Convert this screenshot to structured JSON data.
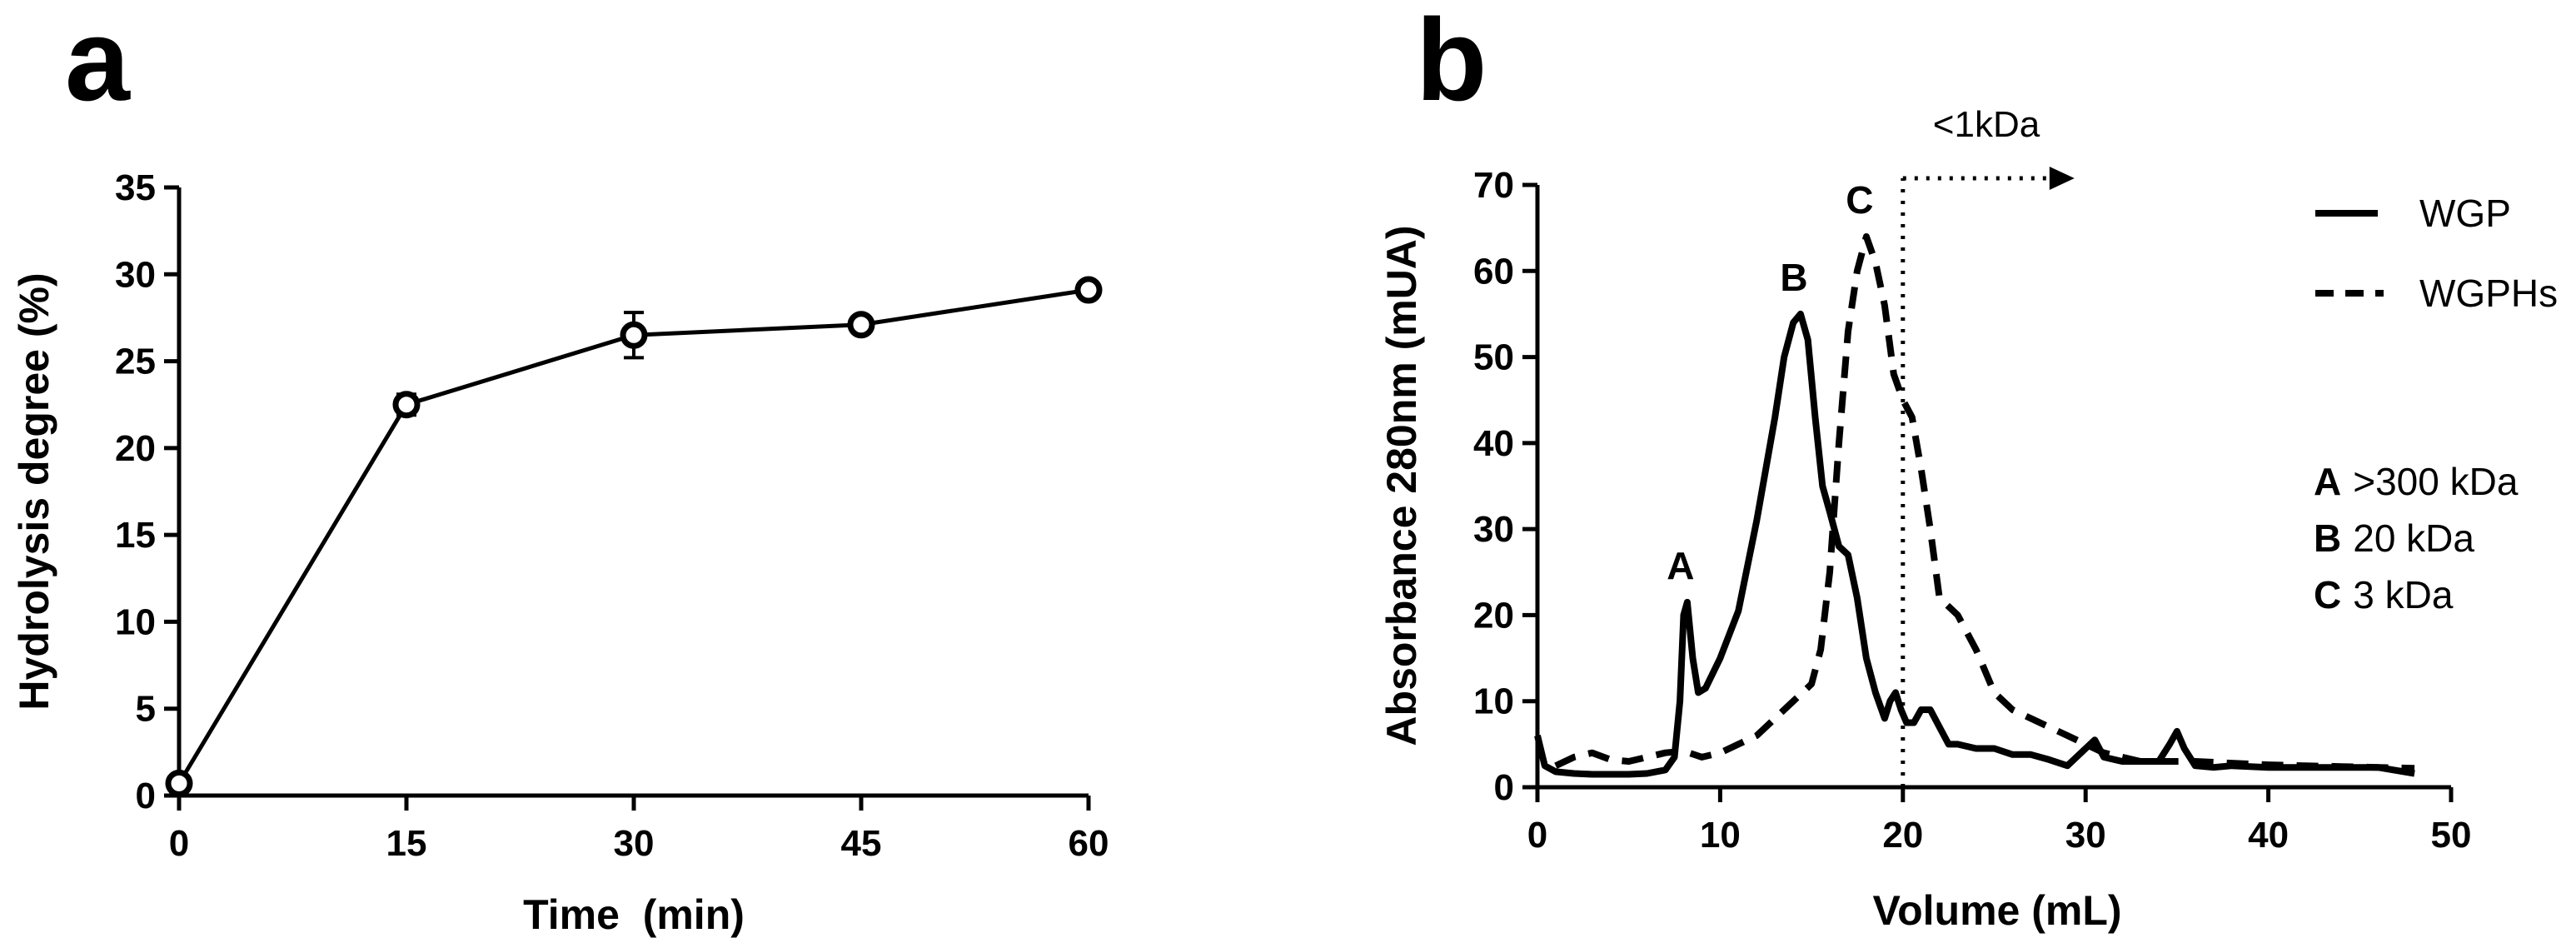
{
  "chart_data": [
    {
      "panel": "a",
      "type": "line",
      "xlabel": "Time  (min)",
      "ylabel": "Hydrolysis degree (%)",
      "xlim": [
        0,
        60
      ],
      "ylim": [
        0,
        35
      ],
      "xticks": [
        0,
        15,
        30,
        45,
        60
      ],
      "yticks": [
        0,
        5,
        10,
        15,
        20,
        25,
        30,
        35
      ],
      "grid": false,
      "marker": "open-circle",
      "series": [
        {
          "x": [
            0,
            15,
            30,
            45,
            60
          ],
          "y": [
            0.7,
            22.5,
            26.5,
            27.1,
            29.1
          ],
          "error": [
            0.3,
            0.6,
            1.3,
            0.4,
            0.4
          ]
        }
      ]
    },
    {
      "panel": "b",
      "type": "line",
      "xlabel": "Volume (mL)",
      "ylabel": "Absorbance 280nm (mUA)",
      "xlim": [
        0,
        50
      ],
      "ylim": [
        0,
        70
      ],
      "xticks": [
        0,
        10,
        20,
        30,
        40,
        50
      ],
      "yticks": [
        0,
        10,
        20,
        30,
        40,
        50,
        60,
        70
      ],
      "grid": false,
      "legend_position": "top-right",
      "series": [
        {
          "name": "WGP",
          "style": "solid",
          "x": [
            0,
            0.4,
            1,
            2,
            3,
            4,
            5,
            6,
            7,
            7.5,
            7.8,
            8.0,
            8.2,
            8.5,
            8.8,
            9.2,
            10,
            11,
            12,
            13,
            13.5,
            14,
            14.4,
            14.8,
            15.2,
            15.6,
            16,
            16.5,
            17,
            17.5,
            18,
            18.5,
            19,
            19.3,
            19.6,
            19.9,
            20.2,
            20.6,
            21,
            21.5,
            22,
            22.5,
            23,
            24,
            25,
            26,
            27,
            28,
            29,
            30,
            30.5,
            31,
            32,
            33,
            34,
            34.6,
            35,
            35.4,
            36,
            37,
            38,
            40,
            42,
            44,
            46,
            48
          ],
          "y": [
            6,
            2.5,
            1.8,
            1.6,
            1.5,
            1.5,
            1.5,
            1.6,
            2.0,
            3.5,
            10,
            20,
            21.5,
            15,
            11,
            11.5,
            15,
            20.5,
            31,
            43,
            50,
            54,
            55,
            52,
            43,
            35,
            32,
            28,
            27,
            22,
            15,
            11,
            8,
            10,
            11,
            9,
            7.5,
            7.5,
            9,
            9,
            7,
            5,
            5,
            4.5,
            4.5,
            3.8,
            3.8,
            3.2,
            2.5,
            4.5,
            5.5,
            3.5,
            3,
            3,
            3,
            5,
            6.5,
            4.5,
            2.5,
            2.3,
            2.5,
            2.3,
            2.3,
            2.3,
            2.3,
            1.6
          ]
        },
        {
          "name": "WGPHs",
          "style": "dashed",
          "x": [
            1,
            2,
            3,
            4,
            5,
            6,
            7,
            8,
            9,
            10,
            11,
            12,
            13,
            14,
            15,
            15.5,
            16,
            16.5,
            17,
            17.5,
            18,
            18.5,
            19,
            19.5,
            20,
            20.5,
            21,
            21.5,
            22,
            22.5,
            23,
            24,
            25,
            26,
            27,
            28,
            29,
            30,
            31,
            32,
            33,
            34,
            35,
            36,
            38,
            40,
            42,
            44,
            46,
            48
          ],
          "y": [
            2.5,
            3.5,
            4,
            3.2,
            3,
            3.5,
            4,
            4.2,
            3.5,
            4,
            5,
            6,
            8,
            10,
            12,
            16,
            25,
            40,
            53,
            60,
            64,
            61,
            56,
            48,
            45,
            43,
            37,
            30,
            22,
            21,
            20,
            16,
            11,
            9,
            8,
            7,
            6,
            5,
            4,
            3.5,
            3,
            3,
            3,
            3,
            2.8,
            2.6,
            2.5,
            2.4,
            2.3,
            2.2
          ]
        }
      ],
      "peak_labels": [
        {
          "label": "A",
          "x": 8.2,
          "y": 21.5
        },
        {
          "label": "B",
          "x": 14.4,
          "y": 55
        },
        {
          "label": "C",
          "x": 18,
          "y": 64
        }
      ],
      "cutoff": {
        "x": 20,
        "label": "<1kDa"
      },
      "mw_legend": [
        {
          "letter": "A",
          "text": ">300 kDa"
        },
        {
          "letter": "B",
          "text": "20 kDa"
        },
        {
          "letter": "C",
          "text": "3 kDa"
        }
      ]
    }
  ],
  "panels": {
    "a": "a",
    "b": "b"
  }
}
